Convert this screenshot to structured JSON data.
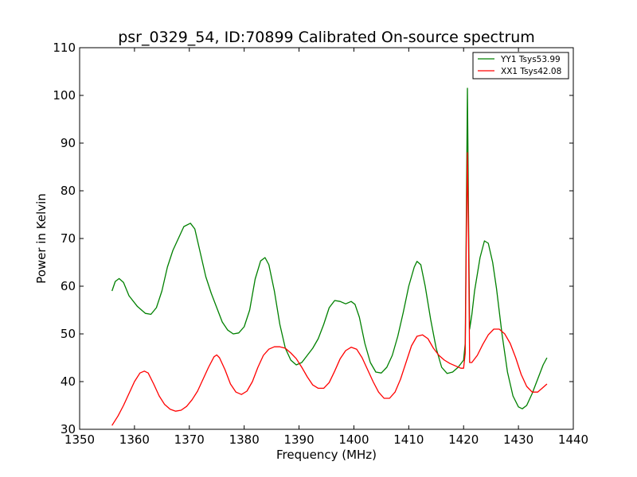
{
  "chart_data": {
    "type": "line",
    "title": "psr_0329_54, ID:70899 Calibrated On-source spectrum",
    "xlabel": "Frequency (MHz)",
    "ylabel": "Power in Kelvin",
    "xlim": [
      1350,
      1440
    ],
    "ylim": [
      30,
      110
    ],
    "xticks": [
      1350,
      1360,
      1370,
      1380,
      1390,
      1400,
      1410,
      1420,
      1430,
      1440
    ],
    "yticks": [
      30,
      40,
      50,
      60,
      70,
      80,
      90,
      100,
      110
    ],
    "grid": false,
    "legend_position": "top-right",
    "series": [
      {
        "name": "YY1 Tsys53.99",
        "color": "#008000",
        "points": [
          [
            1355.9,
            59.0
          ],
          [
            1356.5,
            61.0
          ],
          [
            1357.2,
            61.6
          ],
          [
            1358.0,
            60.8
          ],
          [
            1359.0,
            58.0
          ],
          [
            1360.5,
            55.8
          ],
          [
            1362.0,
            54.3
          ],
          [
            1363.0,
            54.1
          ],
          [
            1364.0,
            55.5
          ],
          [
            1365.0,
            59.0
          ],
          [
            1366.0,
            64.0
          ],
          [
            1367.0,
            67.5
          ],
          [
            1368.0,
            70.0
          ],
          [
            1369.0,
            72.5
          ],
          [
            1370.2,
            73.2
          ],
          [
            1371.0,
            72.0
          ],
          [
            1372.0,
            67.0
          ],
          [
            1373.0,
            62.0
          ],
          [
            1374.0,
            58.5
          ],
          [
            1375.0,
            55.5
          ],
          [
            1376.0,
            52.5
          ],
          [
            1377.0,
            50.8
          ],
          [
            1378.0,
            50.0
          ],
          [
            1379.0,
            50.2
          ],
          [
            1380.0,
            51.5
          ],
          [
            1381.0,
            55.0
          ],
          [
            1382.0,
            61.5
          ],
          [
            1383.0,
            65.3
          ],
          [
            1383.8,
            66.0
          ],
          [
            1384.5,
            64.5
          ],
          [
            1385.5,
            59.0
          ],
          [
            1386.5,
            52.0
          ],
          [
            1387.5,
            47.0
          ],
          [
            1388.5,
            44.5
          ],
          [
            1389.5,
            43.5
          ],
          [
            1390.5,
            44.0
          ],
          [
            1391.5,
            45.5
          ],
          [
            1392.5,
            47.0
          ],
          [
            1393.5,
            49.0
          ],
          [
            1394.5,
            52.0
          ],
          [
            1395.5,
            55.5
          ],
          [
            1396.5,
            57.0
          ],
          [
            1397.5,
            56.8
          ],
          [
            1398.5,
            56.3
          ],
          [
            1399.5,
            56.8
          ],
          [
            1400.2,
            56.2
          ],
          [
            1401.0,
            53.5
          ],
          [
            1402.0,
            48.0
          ],
          [
            1403.0,
            44.0
          ],
          [
            1404.0,
            42.0
          ],
          [
            1405.0,
            41.8
          ],
          [
            1406.0,
            43.0
          ],
          [
            1407.0,
            45.5
          ],
          [
            1408.0,
            49.5
          ],
          [
            1409.0,
            54.5
          ],
          [
            1410.0,
            60.0
          ],
          [
            1411.0,
            64.0
          ],
          [
            1411.5,
            65.2
          ],
          [
            1412.2,
            64.5
          ],
          [
            1413.0,
            60.0
          ],
          [
            1414.0,
            53.0
          ],
          [
            1415.0,
            47.0
          ],
          [
            1416.0,
            43.0
          ],
          [
            1417.0,
            41.7
          ],
          [
            1418.0,
            42.0
          ],
          [
            1419.0,
            43.0
          ],
          [
            1420.0,
            44.5
          ],
          [
            1420.3,
            48.0
          ],
          [
            1420.5,
            75.0
          ],
          [
            1420.7,
            101.5
          ],
          [
            1420.9,
            75.0
          ],
          [
            1421.1,
            51.0
          ],
          [
            1421.5,
            54.0
          ],
          [
            1422.0,
            59.0
          ],
          [
            1423.0,
            66.0
          ],
          [
            1423.8,
            69.5
          ],
          [
            1424.5,
            69.0
          ],
          [
            1425.3,
            65.0
          ],
          [
            1426.0,
            59.5
          ],
          [
            1427.0,
            50.0
          ],
          [
            1428.0,
            42.0
          ],
          [
            1429.0,
            37.0
          ],
          [
            1430.0,
            34.7
          ],
          [
            1430.7,
            34.3
          ],
          [
            1431.5,
            35.0
          ],
          [
            1432.5,
            37.5
          ],
          [
            1433.5,
            40.5
          ],
          [
            1434.5,
            43.5
          ],
          [
            1435.2,
            45.0
          ]
        ]
      },
      {
        "name": "XX1 Tsys42.08",
        "color": "#ff0000",
        "points": [
          [
            1355.9,
            30.8
          ],
          [
            1357.0,
            32.8
          ],
          [
            1358.0,
            35.0
          ],
          [
            1359.0,
            37.5
          ],
          [
            1360.0,
            40.0
          ],
          [
            1361.0,
            41.8
          ],
          [
            1361.8,
            42.2
          ],
          [
            1362.5,
            41.8
          ],
          [
            1363.5,
            39.5
          ],
          [
            1364.5,
            37.0
          ],
          [
            1365.5,
            35.2
          ],
          [
            1366.5,
            34.2
          ],
          [
            1367.5,
            33.8
          ],
          [
            1368.5,
            34.0
          ],
          [
            1369.5,
            34.8
          ],
          [
            1370.5,
            36.2
          ],
          [
            1371.5,
            38.0
          ],
          [
            1372.5,
            40.5
          ],
          [
            1373.5,
            43.0
          ],
          [
            1374.5,
            45.2
          ],
          [
            1375.0,
            45.6
          ],
          [
            1375.5,
            45.0
          ],
          [
            1376.5,
            42.5
          ],
          [
            1377.5,
            39.5
          ],
          [
            1378.5,
            37.8
          ],
          [
            1379.5,
            37.3
          ],
          [
            1380.5,
            38.0
          ],
          [
            1381.5,
            40.0
          ],
          [
            1382.5,
            43.0
          ],
          [
            1383.5,
            45.5
          ],
          [
            1384.5,
            46.8
          ],
          [
            1385.5,
            47.3
          ],
          [
            1386.5,
            47.3
          ],
          [
            1387.5,
            47.0
          ],
          [
            1388.5,
            46.0
          ],
          [
            1389.5,
            44.8
          ],
          [
            1390.5,
            43.0
          ],
          [
            1391.5,
            41.0
          ],
          [
            1392.5,
            39.3
          ],
          [
            1393.5,
            38.6
          ],
          [
            1394.5,
            38.6
          ],
          [
            1395.5,
            39.8
          ],
          [
            1396.5,
            42.2
          ],
          [
            1397.5,
            44.8
          ],
          [
            1398.5,
            46.5
          ],
          [
            1399.5,
            47.2
          ],
          [
            1400.5,
            46.8
          ],
          [
            1401.5,
            45.0
          ],
          [
            1402.5,
            42.5
          ],
          [
            1403.5,
            40.0
          ],
          [
            1404.5,
            37.8
          ],
          [
            1405.5,
            36.5
          ],
          [
            1406.5,
            36.5
          ],
          [
            1407.5,
            37.8
          ],
          [
            1408.5,
            40.5
          ],
          [
            1409.5,
            44.0
          ],
          [
            1410.5,
            47.5
          ],
          [
            1411.5,
            49.5
          ],
          [
            1412.5,
            49.8
          ],
          [
            1413.5,
            49.0
          ],
          [
            1414.5,
            47.0
          ],
          [
            1415.5,
            45.5
          ],
          [
            1416.5,
            44.5
          ],
          [
            1417.5,
            43.8
          ],
          [
            1418.5,
            43.3
          ],
          [
            1419.5,
            42.8
          ],
          [
            1420.0,
            42.8
          ],
          [
            1420.3,
            46.0
          ],
          [
            1420.5,
            70.0
          ],
          [
            1420.7,
            88.0
          ],
          [
            1420.9,
            70.0
          ],
          [
            1421.1,
            44.0
          ],
          [
            1421.5,
            44.0
          ],
          [
            1422.5,
            45.5
          ],
          [
            1423.5,
            47.8
          ],
          [
            1424.5,
            49.8
          ],
          [
            1425.5,
            51.0
          ],
          [
            1426.5,
            51.0
          ],
          [
            1427.5,
            50.0
          ],
          [
            1428.5,
            48.0
          ],
          [
            1429.5,
            45.0
          ],
          [
            1430.5,
            41.5
          ],
          [
            1431.5,
            39.0
          ],
          [
            1432.5,
            37.8
          ],
          [
            1433.5,
            37.8
          ],
          [
            1434.5,
            38.8
          ],
          [
            1435.2,
            39.5
          ]
        ]
      }
    ]
  }
}
